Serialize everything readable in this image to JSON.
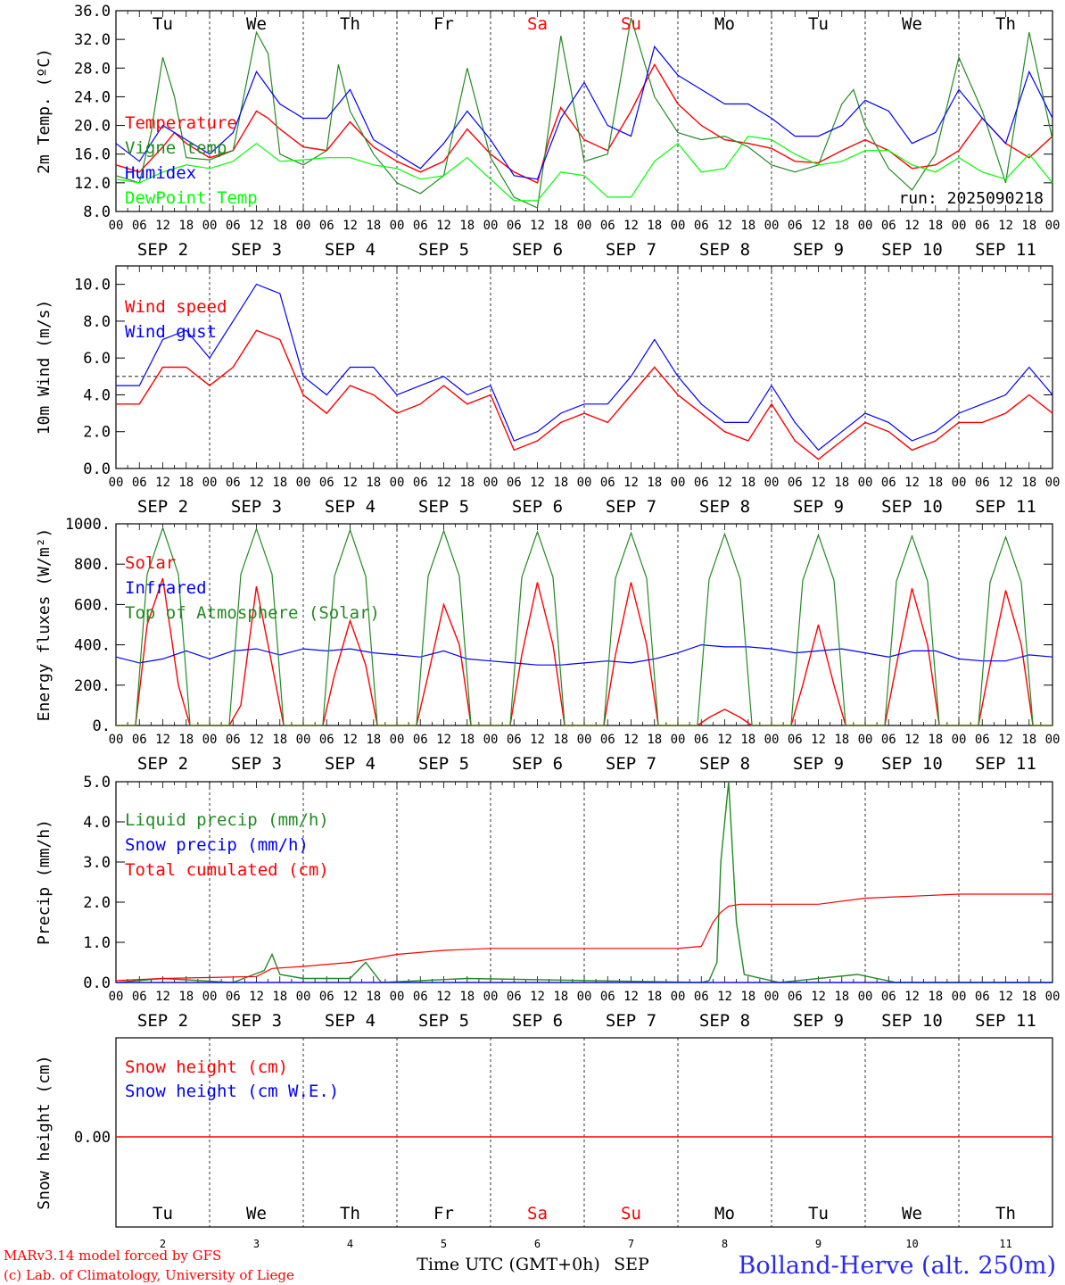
{
  "run_label": "run: 2025090218",
  "days": {
    "weekdays": [
      "Tu",
      "We",
      "Th",
      "Fr",
      "Sa",
      "Su",
      "Mo",
      "Tu",
      "We",
      "Th"
    ],
    "weekday_colors": [
      "#000000",
      "#000000",
      "#000000",
      "#000000",
      "#ff0000",
      "#ff0000",
      "#000000",
      "#000000",
      "#000000",
      "#000000"
    ],
    "dates": [
      "SEP  2",
      "SEP  3",
      "SEP  4",
      "SEP  5",
      "SEP  6",
      "SEP  7",
      "SEP  8",
      "SEP  9",
      "SEP 10",
      "SEP 11"
    ],
    "day_numbers": [
      "2",
      "3",
      "4",
      "5",
      "6",
      "7",
      "8",
      "9",
      "10",
      "11"
    ],
    "hour_labels": [
      "00",
      "06",
      "12",
      "18"
    ],
    "final_hour_label": "00"
  },
  "footer": {
    "credit_1": "MARv3.14 model forced by GFS",
    "credit_2": "(c) Lab. of Climatology, University of Liege",
    "xlabel": "Time UTC (GMT+0h)",
    "month": "SEP",
    "station": "Bolland-Herve (alt. 250m)"
  },
  "chart_data": [
    {
      "type": "line",
      "ylabel": "2m Temp. (ºC)",
      "ylim": [
        8,
        36
      ],
      "yticks": [
        "8.0",
        "12.0",
        "16.0",
        "20.0",
        "24.0",
        "28.0",
        "32.0",
        "36.0"
      ],
      "x_unit": "hours since SEP 2 00 UTC",
      "series": [
        {
          "name": "Temperature",
          "color": "#ff0000",
          "x": [
            0,
            6,
            12,
            15,
            18,
            24,
            30,
            36,
            39,
            42,
            48,
            54,
            60,
            66,
            72,
            78,
            84,
            90,
            96,
            102,
            108,
            111,
            114,
            120,
            126,
            132,
            138,
            144,
            150,
            156,
            162,
            168,
            174,
            180,
            186,
            192,
            198,
            204,
            210,
            216,
            222,
            228,
            234,
            240
          ],
          "y": [
            14.5,
            13.5,
            17,
            19,
            17.5,
            15.5,
            16.5,
            22,
            21,
            19.5,
            17,
            16.5,
            20.5,
            17,
            15,
            13.5,
            15,
            19.5,
            16,
            13.5,
            12,
            18,
            22.5,
            18,
            16.5,
            22,
            28.5,
            23,
            20,
            18,
            17.5,
            16.8,
            15,
            14.8,
            16.5,
            18,
            16.5,
            14,
            14.5,
            16.5,
            21,
            17.5,
            15.5,
            18.5
          ]
        },
        {
          "name": "Vigne temp",
          "color": "#228b22",
          "x": [
            0,
            6,
            9,
            12,
            15,
            18,
            24,
            30,
            36,
            39,
            42,
            48,
            54,
            57,
            60,
            66,
            72,
            78,
            84,
            90,
            96,
            102,
            108,
            111,
            114,
            120,
            126,
            132,
            138,
            144,
            150,
            156,
            162,
            168,
            174,
            180,
            186,
            189,
            192,
            198,
            204,
            210,
            216,
            222,
            228,
            234,
            240
          ],
          "y": [
            13,
            12,
            19,
            29.5,
            24,
            15.5,
            15.2,
            16.5,
            33,
            30,
            16,
            14.5,
            16.5,
            28.5,
            22,
            16,
            12,
            10.5,
            13,
            28,
            15.5,
            10,
            8.5,
            20,
            32.5,
            15,
            16,
            35,
            24,
            19,
            18,
            18.5,
            17,
            14.5,
            13.5,
            14.5,
            23,
            25,
            20,
            14,
            11,
            16,
            29.5,
            22,
            12,
            33,
            18
          ]
        },
        {
          "name": "Humidex",
          "color": "#0000ff",
          "x": [
            0,
            6,
            12,
            18,
            24,
            30,
            36,
            42,
            48,
            54,
            60,
            66,
            72,
            78,
            84,
            90,
            96,
            102,
            108,
            114,
            120,
            126,
            132,
            138,
            144,
            150,
            156,
            162,
            168,
            174,
            180,
            186,
            192,
            198,
            204,
            210,
            216,
            222,
            228,
            234,
            240
          ],
          "y": [
            17.5,
            15,
            20,
            18,
            16,
            19,
            27.5,
            23,
            21,
            21,
            25,
            18,
            16,
            14,
            17.5,
            22,
            18,
            13,
            12.5,
            21,
            26,
            20,
            18.5,
            31,
            27,
            25,
            23,
            23,
            21,
            18.5,
            18.5,
            20,
            23.5,
            22,
            17.5,
            19,
            25,
            21,
            17.5,
            27.5,
            21
          ]
        },
        {
          "name": "DewPoint Temp",
          "color": "#00ff00",
          "x": [
            0,
            6,
            12,
            18,
            24,
            30,
            36,
            42,
            48,
            54,
            60,
            66,
            72,
            78,
            84,
            90,
            96,
            102,
            108,
            114,
            120,
            126,
            132,
            138,
            144,
            150,
            156,
            162,
            168,
            174,
            180,
            186,
            192,
            198,
            204,
            210,
            216,
            222,
            228,
            234,
            240
          ],
          "y": [
            12.5,
            12,
            13.5,
            14.5,
            14,
            15,
            17.5,
            15,
            15.2,
            15.5,
            15.5,
            14.5,
            14,
            12.5,
            13,
            15.5,
            12.5,
            9.5,
            9.5,
            13.5,
            13,
            10,
            10,
            15,
            17.5,
            13.5,
            14,
            18.5,
            18,
            16,
            14.5,
            15,
            16.5,
            16.5,
            14.5,
            13.5,
            15.5,
            13.5,
            12.5,
            16,
            12
          ]
        }
      ]
    },
    {
      "type": "line",
      "ylabel": "10m Wind (m/s)",
      "ylim": [
        0,
        11
      ],
      "yticks": [
        "0.0",
        "2.0",
        "4.0",
        "6.0",
        "8.0",
        "10.0"
      ],
      "ref_line": 5,
      "x_unit": "hours since SEP 2 00 UTC",
      "series": [
        {
          "name": "Wind speed",
          "color": "#ff0000",
          "x": [
            0,
            6,
            12,
            18,
            24,
            30,
            36,
            42,
            48,
            54,
            60,
            66,
            72,
            78,
            84,
            90,
            96,
            102,
            108,
            114,
            120,
            126,
            132,
            138,
            144,
            150,
            156,
            162,
            168,
            174,
            180,
            186,
            192,
            198,
            204,
            210,
            216,
            222,
            228,
            234,
            240
          ],
          "y": [
            3.5,
            3.5,
            5.5,
            5.5,
            4.5,
            5.5,
            7.5,
            7,
            4,
            3,
            4.5,
            4,
            3,
            3.5,
            4.5,
            3.5,
            4,
            1,
            1.5,
            2.5,
            3,
            2.5,
            4,
            5.5,
            4,
            3,
            2,
            1.5,
            3.5,
            1.5,
            0.5,
            1.5,
            2.5,
            2,
            1,
            1.5,
            2.5,
            2.5,
            3,
            4,
            3
          ]
        },
        {
          "name": "Wind gust",
          "color": "#0000ff",
          "x": [
            0,
            6,
            12,
            18,
            24,
            30,
            36,
            42,
            48,
            54,
            60,
            66,
            72,
            78,
            84,
            90,
            96,
            102,
            108,
            114,
            120,
            126,
            132,
            138,
            144,
            150,
            156,
            162,
            168,
            174,
            180,
            186,
            192,
            198,
            204,
            210,
            216,
            222,
            228,
            234,
            240
          ],
          "y": [
            4.5,
            4.5,
            7,
            7.5,
            6,
            8,
            10,
            9.5,
            5,
            4,
            5.5,
            5.5,
            4,
            4.5,
            5,
            4,
            4.5,
            1.5,
            2,
            3,
            3.5,
            3.5,
            5,
            7,
            5,
            3.5,
            2.5,
            2.5,
            4.5,
            2.5,
            1,
            2,
            3,
            2.5,
            1.5,
            2,
            3,
            3.5,
            4,
            5.5,
            4
          ]
        }
      ]
    },
    {
      "type": "line",
      "ylabel": "Energy fluxes (W/m²)",
      "ylim": [
        0,
        1000
      ],
      "yticks": [
        "0.",
        "200.",
        "400.",
        "600.",
        "800.",
        "1000."
      ],
      "x_unit": "hours since SEP 2 00 UTC",
      "series": [
        {
          "name": "Solar",
          "color": "#ff0000",
          "x": [
            0,
            5,
            8,
            12,
            16,
            19,
            29,
            32,
            36,
            40,
            43,
            53,
            56,
            60,
            64,
            67,
            77,
            80,
            84,
            88,
            91,
            101,
            104,
            108,
            112,
            115,
            125,
            128,
            132,
            136,
            139,
            149,
            152,
            156,
            160,
            163,
            173,
            176,
            180,
            184,
            187,
            197,
            200,
            204,
            208,
            211,
            221,
            224,
            228,
            232,
            235,
            240
          ],
          "y": [
            0,
            0,
            500,
            730,
            200,
            0,
            0,
            100,
            690,
            300,
            0,
            0,
            250,
            520,
            300,
            0,
            0,
            250,
            600,
            400,
            0,
            0,
            350,
            710,
            400,
            0,
            0,
            350,
            710,
            400,
            0,
            0,
            40,
            80,
            40,
            0,
            0,
            200,
            500,
            200,
            0,
            0,
            300,
            680,
            400,
            0,
            0,
            300,
            670,
            400,
            0,
            0
          ]
        },
        {
          "name": "Infrared",
          "color": "#0000ff",
          "x": [
            0,
            6,
            12,
            18,
            24,
            30,
            36,
            42,
            48,
            54,
            60,
            66,
            72,
            78,
            84,
            90,
            96,
            102,
            108,
            114,
            120,
            126,
            132,
            138,
            144,
            150,
            156,
            162,
            168,
            174,
            180,
            186,
            192,
            198,
            204,
            210,
            216,
            222,
            228,
            234,
            240
          ],
          "y": [
            340,
            310,
            330,
            370,
            330,
            370,
            380,
            350,
            380,
            370,
            380,
            360,
            350,
            340,
            370,
            330,
            320,
            310,
            300,
            300,
            310,
            320,
            310,
            330,
            360,
            400,
            390,
            390,
            380,
            360,
            370,
            380,
            360,
            340,
            370,
            370,
            330,
            320,
            320,
            350,
            340
          ]
        },
        {
          "name": "Top of Atmosphere (Solar)",
          "color": "#228b22",
          "x": [
            0,
            5,
            8,
            12,
            16,
            19,
            29,
            32,
            36,
            40,
            43,
            53,
            56,
            60,
            64,
            67,
            77,
            80,
            84,
            88,
            91,
            101,
            104,
            108,
            112,
            115,
            125,
            128,
            132,
            136,
            139,
            149,
            152,
            156,
            160,
            163,
            173,
            176,
            180,
            184,
            187,
            197,
            200,
            204,
            208,
            211,
            221,
            224,
            228,
            232,
            235,
            240
          ],
          "y": [
            0,
            0,
            750,
            980,
            750,
            0,
            0,
            750,
            975,
            750,
            0,
            0,
            740,
            970,
            740,
            0,
            0,
            740,
            965,
            740,
            0,
            0,
            735,
            960,
            735,
            0,
            0,
            730,
            955,
            730,
            0,
            0,
            725,
            950,
            725,
            0,
            0,
            720,
            945,
            720,
            0,
            0,
            715,
            940,
            715,
            0,
            0,
            710,
            935,
            710,
            0,
            0
          ]
        }
      ]
    },
    {
      "type": "line",
      "ylabel": "Precip (mm/h)",
      "ylim": [
        0,
        5
      ],
      "yticks": [
        "0.0",
        "1.0",
        "2.0",
        "3.0",
        "4.0",
        "5.0"
      ],
      "x_unit": "hours since SEP 2 00 UTC",
      "series": [
        {
          "name": "Liquid precip (mm/h)",
          "color": "#228b22",
          "x": [
            0,
            12,
            30,
            38,
            40,
            42,
            48,
            60,
            64,
            68,
            90,
            150,
            152,
            154,
            155,
            157,
            159,
            161,
            170,
            190,
            200,
            240
          ],
          "y": [
            0,
            0.1,
            0,
            0.3,
            0.7,
            0.2,
            0.1,
            0.1,
            0.5,
            0,
            0.1,
            0,
            0.05,
            0.5,
            3,
            5,
            1.5,
            0.2,
            0,
            0.2,
            0,
            0
          ]
        },
        {
          "name": "Snow precip (mm/h)",
          "color": "#0000ff",
          "x": [
            0,
            240
          ],
          "y": [
            0,
            0
          ]
        },
        {
          "name": "Total cumulated (cm)",
          "color": "#ff0000",
          "x": [
            0,
            12,
            36,
            40,
            48,
            60,
            66,
            72,
            84,
            96,
            144,
            150,
            153,
            155,
            157,
            160,
            168,
            180,
            192,
            204,
            216,
            240
          ],
          "y": [
            0.05,
            0.1,
            0.15,
            0.35,
            0.4,
            0.5,
            0.6,
            0.7,
            0.8,
            0.85,
            0.85,
            0.9,
            1.5,
            1.75,
            1.9,
            1.95,
            1.95,
            1.95,
            2.1,
            2.15,
            2.2,
            2.2
          ]
        }
      ]
    },
    {
      "type": "line",
      "ylabel": "Snow height (cm)",
      "yticks": [
        "0.00"
      ],
      "x_unit": "hours since SEP 2 00 UTC",
      "series": [
        {
          "name": "Snow height (cm)",
          "color": "#ff0000",
          "x": [
            0,
            240
          ],
          "y": [
            0,
            0
          ]
        },
        {
          "name": "Snow height (cm W.E.)",
          "color": "#0000ff",
          "x": [
            0,
            240
          ],
          "y": [
            0,
            0
          ]
        }
      ]
    }
  ]
}
